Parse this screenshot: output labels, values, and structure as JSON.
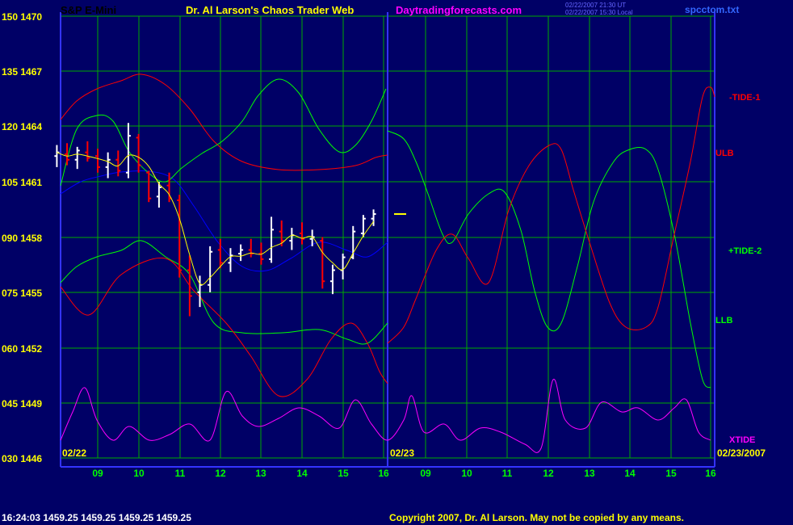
{
  "header": {
    "instrument": "S&P E-Mini",
    "title": "Dr. Al Larson's Chaos Trader Web",
    "site": "Daytradingforecasts.com",
    "timestamp_1": "02/22/2007 21:30 UT",
    "timestamp_2": "02/22/2007 15:30 Local",
    "file": "spcctom.txt"
  },
  "footer": {
    "ticker": "16:24:03  1459.25 1459.25 1459.25 1459.25",
    "copyright": "Copyright 2007, Dr. Al Larson. May not be copied by any means."
  },
  "colors": {
    "background": "#000066",
    "grid": "#00aa00",
    "axis": "#3333ff",
    "axis_label": "#ffff00",
    "time_label": "#00ff00",
    "price_up": "#ffffff",
    "price_down": "#ff0000",
    "ma_fast": "#ffff00",
    "ma_slow": "#0000ff",
    "tide1": "#ff0000",
    "tide2": "#00ff00",
    "xtide": "#ff00ff"
  },
  "chart_data": {
    "type": "line",
    "title": "S&P E-Mini",
    "y_left_labels": [
      "150 1470",
      "135 1467",
      "120 1464",
      "105 1461",
      "090 1458",
      "075 1455",
      "060 1452",
      "045 1449",
      "030 1446"
    ],
    "price_range": [
      1446,
      1470
    ],
    "x_tick_labels": [
      "09",
      "10",
      "11",
      "12",
      "13",
      "14",
      "15",
      "16",
      "09",
      "10",
      "11",
      "12",
      "13",
      "14",
      "15",
      "16"
    ],
    "date_labels": [
      "02/22",
      "02/23",
      "02/23/2007"
    ],
    "series_labels": [
      "-TIDE-1",
      "ULB",
      "+TIDE-2",
      "LLB",
      "XTIDE"
    ],
    "last_price": 1459.25,
    "price_bars": [
      {
        "t": 8.0,
        "o": 1462.4,
        "h": 1463.0,
        "l": 1461.8,
        "c": 1462.6
      },
      {
        "t": 8.25,
        "o": 1462.5,
        "h": 1463.1,
        "l": 1461.9,
        "c": 1462.2
      },
      {
        "t": 8.5,
        "o": 1462.2,
        "h": 1462.9,
        "l": 1461.7,
        "c": 1462.7
      },
      {
        "t": 8.75,
        "o": 1462.6,
        "h": 1463.2,
        "l": 1462.1,
        "c": 1462.3
      },
      {
        "t": 9.0,
        "o": 1462.4,
        "h": 1462.8,
        "l": 1461.5,
        "c": 1461.8
      },
      {
        "t": 9.25,
        "o": 1461.8,
        "h": 1462.6,
        "l": 1461.2,
        "c": 1462.2
      },
      {
        "t": 9.5,
        "o": 1462.2,
        "h": 1462.7,
        "l": 1461.3,
        "c": 1461.6
      },
      {
        "t": 9.75,
        "o": 1461.5,
        "h": 1464.2,
        "l": 1461.2,
        "c": 1463.5
      },
      {
        "t": 10.0,
        "o": 1463.4,
        "h": 1463.6,
        "l": 1461.5,
        "c": 1461.9
      },
      {
        "t": 10.25,
        "o": 1461.5,
        "h": 1461.6,
        "l": 1459.9,
        "c": 1460.1
      },
      {
        "t": 10.5,
        "o": 1460.2,
        "h": 1461.0,
        "l": 1459.6,
        "c": 1460.7
      },
      {
        "t": 10.75,
        "o": 1460.8,
        "h": 1461.5,
        "l": 1459.9,
        "c": 1460.1
      },
      {
        "t": 11.0,
        "o": 1460.0,
        "h": 1460.3,
        "l": 1455.8,
        "c": 1456.2
      },
      {
        "t": 11.25,
        "o": 1456.2,
        "h": 1457.0,
        "l": 1453.7,
        "c": 1454.8
      },
      {
        "t": 11.5,
        "o": 1455.0,
        "h": 1455.9,
        "l": 1454.2,
        "c": 1455.4
      },
      {
        "t": 11.75,
        "o": 1455.4,
        "h": 1457.5,
        "l": 1455.0,
        "c": 1457.2
      },
      {
        "t": 12.0,
        "o": 1457.3,
        "h": 1457.9,
        "l": 1456.3,
        "c": 1456.6
      },
      {
        "t": 12.25,
        "o": 1456.6,
        "h": 1457.4,
        "l": 1456.1,
        "c": 1457.0
      },
      {
        "t": 12.5,
        "o": 1457.1,
        "h": 1457.6,
        "l": 1456.7,
        "c": 1457.3
      },
      {
        "t": 12.75,
        "o": 1457.3,
        "h": 1457.9,
        "l": 1456.9,
        "c": 1457.1
      },
      {
        "t": 13.0,
        "o": 1457.1,
        "h": 1457.7,
        "l": 1456.5,
        "c": 1456.8
      },
      {
        "t": 13.25,
        "o": 1456.8,
        "h": 1459.1,
        "l": 1456.6,
        "c": 1458.4
      },
      {
        "t": 13.5,
        "o": 1458.3,
        "h": 1458.9,
        "l": 1457.5,
        "c": 1457.8
      },
      {
        "t": 13.75,
        "o": 1457.8,
        "h": 1458.5,
        "l": 1457.3,
        "c": 1458.1
      },
      {
        "t": 14.0,
        "o": 1458.2,
        "h": 1458.8,
        "l": 1457.6,
        "c": 1457.9
      },
      {
        "t": 14.25,
        "o": 1457.9,
        "h": 1458.4,
        "l": 1457.5,
        "c": 1458.0
      },
      {
        "t": 14.5,
        "o": 1457.8,
        "h": 1458.0,
        "l": 1455.2,
        "c": 1455.6
      },
      {
        "t": 14.75,
        "o": 1455.6,
        "h": 1456.5,
        "l": 1454.9,
        "c": 1456.2
      },
      {
        "t": 15.0,
        "o": 1456.2,
        "h": 1457.1,
        "l": 1455.7,
        "c": 1456.9
      },
      {
        "t": 15.25,
        "o": 1456.9,
        "h": 1458.6,
        "l": 1456.8,
        "c": 1458.3
      },
      {
        "t": 15.5,
        "o": 1458.2,
        "h": 1459.2,
        "l": 1458.0,
        "c": 1459.0
      },
      {
        "t": 15.75,
        "o": 1459.0,
        "h": 1459.5,
        "l": 1458.6,
        "c": 1459.25
      }
    ]
  }
}
